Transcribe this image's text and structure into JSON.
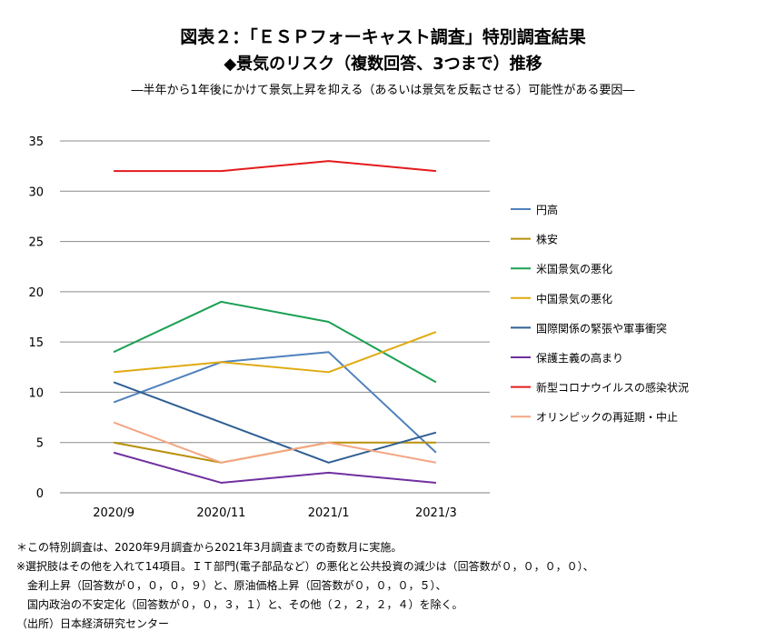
{
  "header": {
    "title_line1": "図表２：「ＥＳＰフォーキャスト調査」特別調査結果",
    "title_line2": "◆景気のリスク（複数回答、3つまで）推移",
    "subtitle": "―半年から1年後にかけて景気上昇を抑える（あるいは景気を反転させる）可能性がある要因―"
  },
  "chart_data": {
    "type": "line",
    "title": "景気のリスク（複数回答、3つまで）推移",
    "categories": [
      "2020/9",
      "2020/11",
      "2021/1",
      "2021/3"
    ],
    "ylim": [
      0,
      35
    ],
    "yticks": [
      0,
      5,
      10,
      15,
      20,
      25,
      30,
      35
    ],
    "grid": true,
    "legend_position": "right",
    "series": [
      {
        "name": "円高",
        "color": "#4f81bd",
        "values": [
          9,
          13,
          14,
          4
        ]
      },
      {
        "name": "株安",
        "color": "#b8900a",
        "values": [
          5,
          3,
          5,
          5
        ]
      },
      {
        "name": "米国景気の悪化",
        "color": "#1aa052",
        "values": [
          14,
          19,
          17,
          11
        ]
      },
      {
        "name": "中国景気の悪化",
        "color": "#e0aa10",
        "values": [
          12,
          13,
          12,
          16
        ]
      },
      {
        "name": "国際関係の緊張や軍事衝突",
        "color": "#2e5f93",
        "values": [
          11,
          7,
          3,
          6
        ]
      },
      {
        "name": "保護主義の高まり",
        "color": "#7030a0",
        "values": [
          4,
          1,
          2,
          1
        ]
      },
      {
        "name": "新型コロナウイルスの感染状況",
        "color": "#e31a1c",
        "values": [
          32,
          32,
          33,
          32
        ]
      },
      {
        "name": "オリンピックの再延期・中止",
        "color": "#f4a582",
        "values": [
          7,
          3,
          5,
          3
        ]
      }
    ]
  },
  "notes": {
    "note1": "＊この特別調査は、2020年9月調査から2021年3月調査までの奇数月に実施。",
    "note2": "※選択肢はその他を入れて14項目。ＩＴ部門(電子部品など）の悪化と公共投資の減少は（回答数が０，０，０，０）、",
    "note3": "　金利上昇（回答数が０，０，０，９）と、原油価格上昇（回答数が０，０，０，５）、",
    "note4": "　国内政治の不安定化（回答数が０，０，３，１）と、その他（２，２，２，４）を除く。",
    "source": "（出所）日本経済研究センター"
  }
}
